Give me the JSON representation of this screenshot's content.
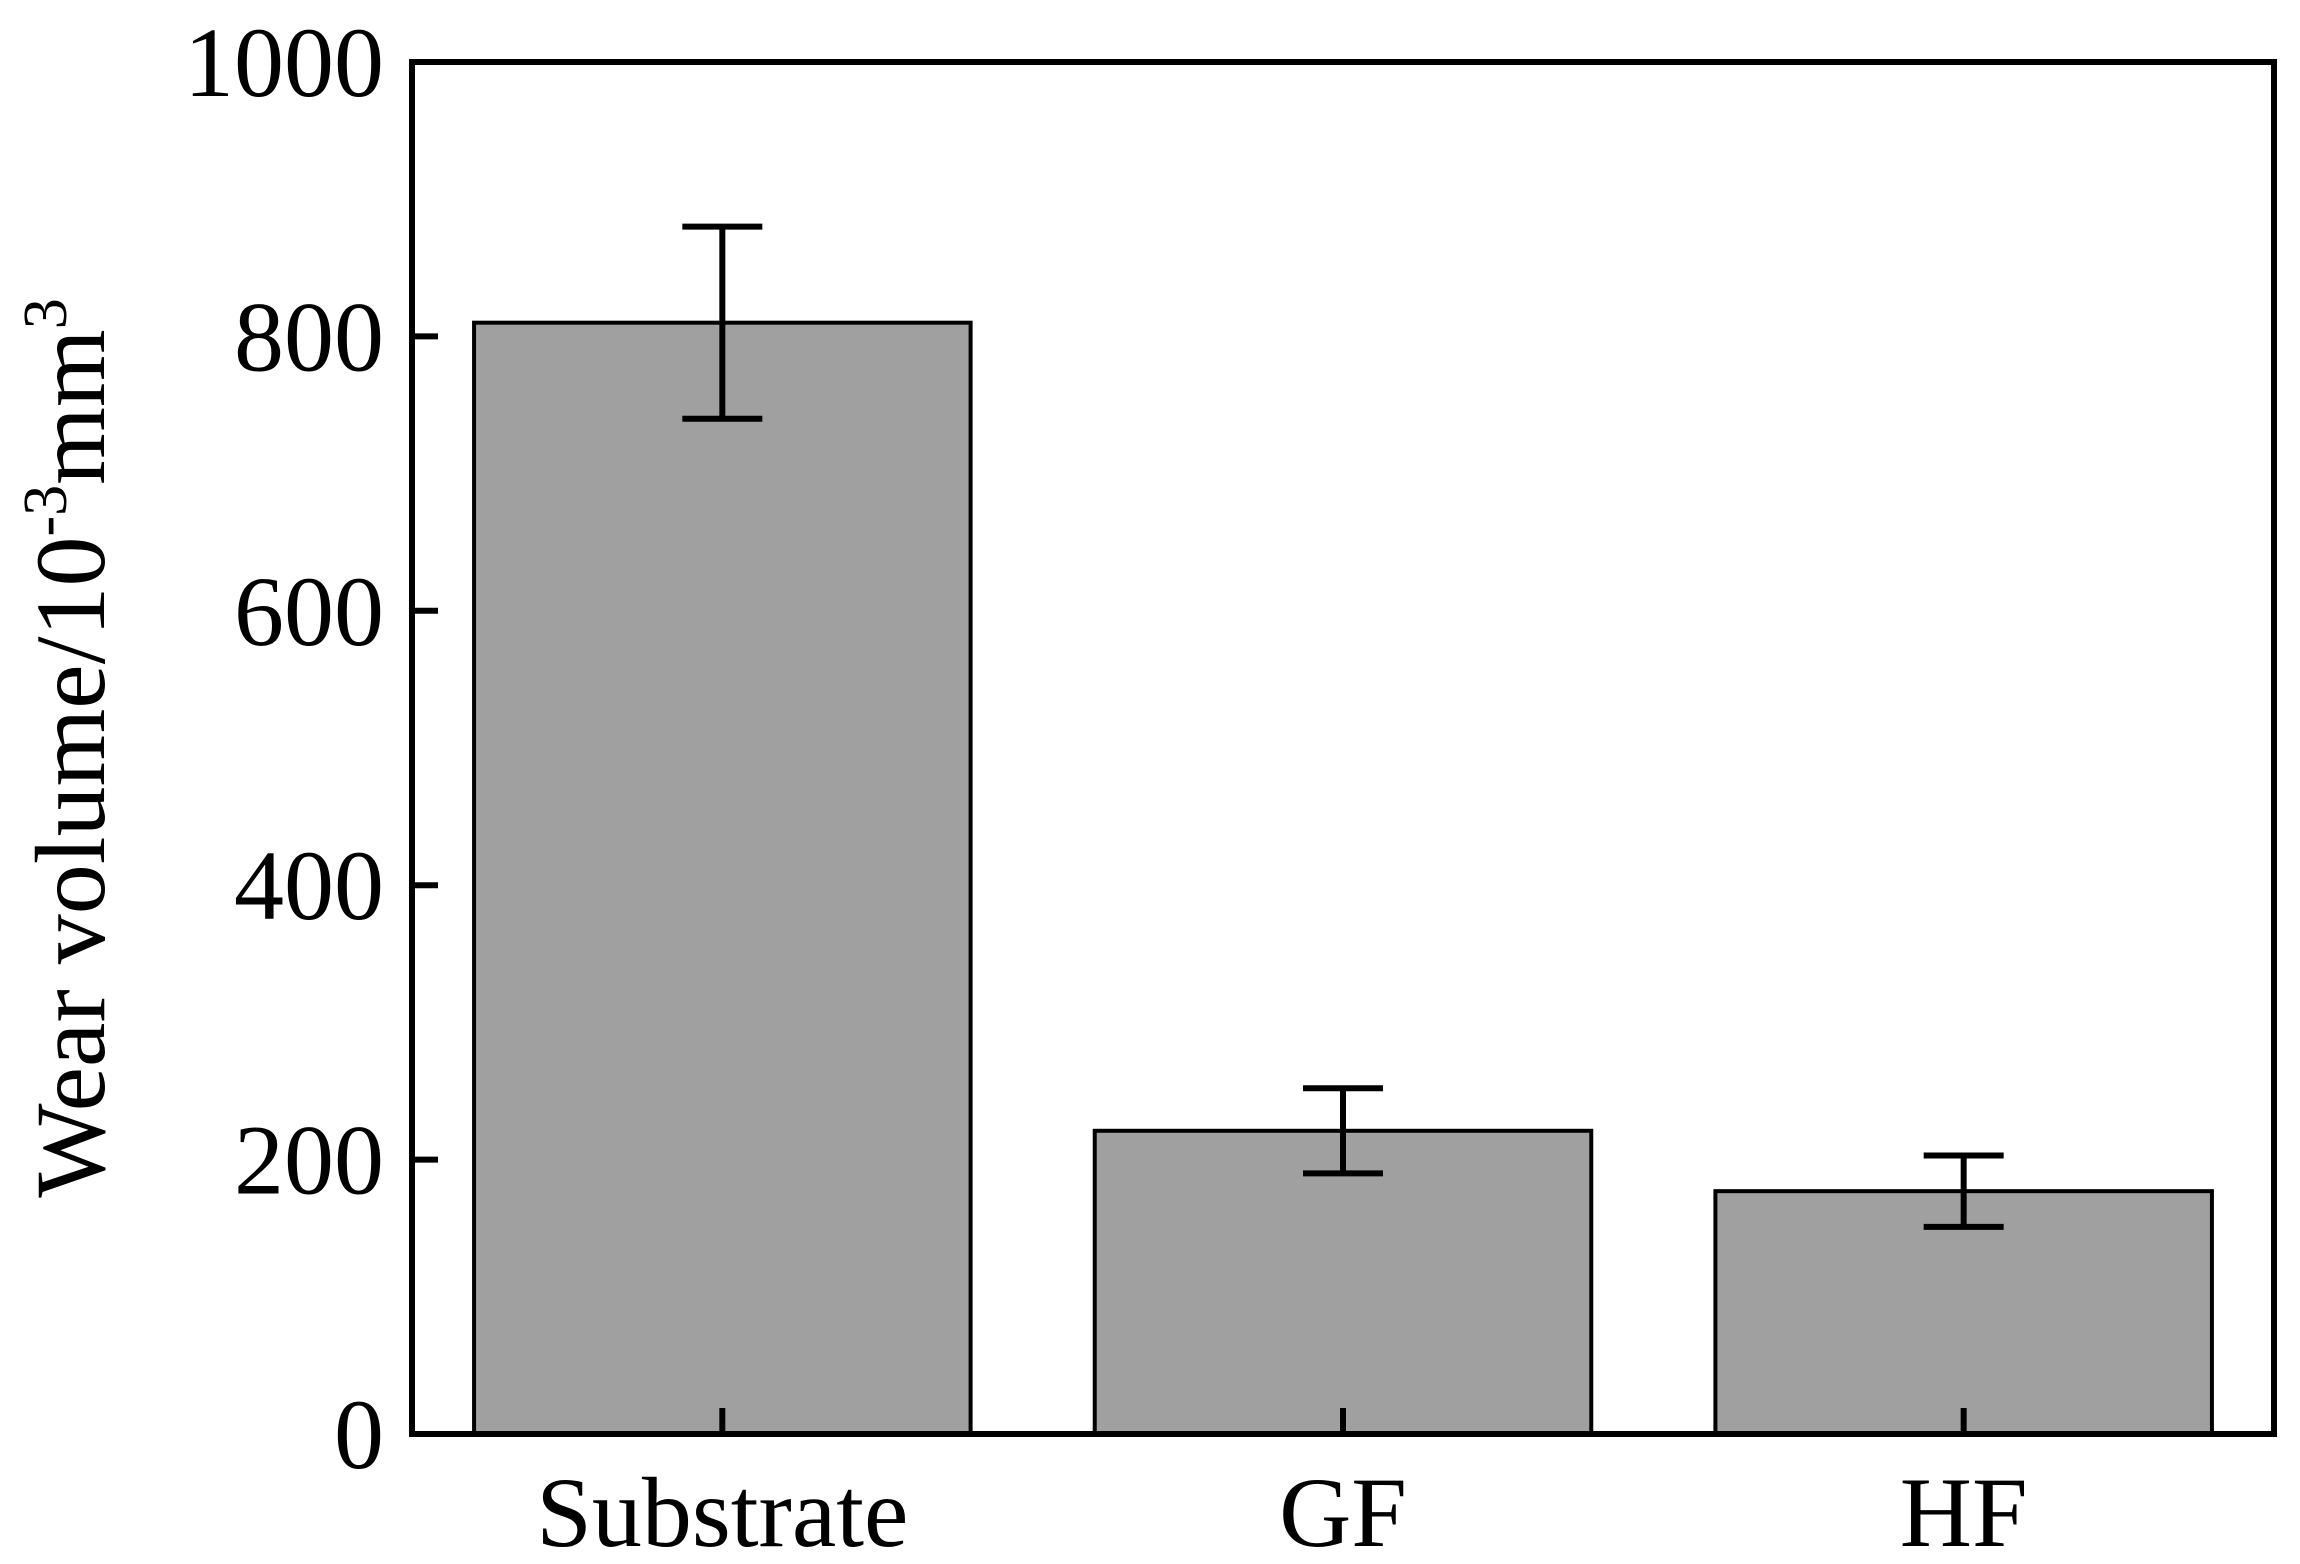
{
  "chart_data": {
    "type": "bar",
    "title": "",
    "xlabel": "",
    "ylabel": {
      "base": "Wear volume/10",
      "exponent": "-3",
      "unit": "mm",
      "unit_exponent": "3"
    },
    "categories": [
      "Substrate",
      "GF",
      "HF"
    ],
    "values": [
      810,
      221,
      177
    ],
    "error_bars": [
      70,
      31,
      26
    ],
    "ylim": [
      0,
      1000
    ],
    "yticks": [
      0,
      200,
      400,
      600,
      800,
      1000
    ],
    "grid": false,
    "legend": "none",
    "colors": {
      "bar_fill": "#a0a0a0",
      "bar_stroke": "#000000",
      "axis": "#000000",
      "error_bar": "#000000"
    }
  }
}
